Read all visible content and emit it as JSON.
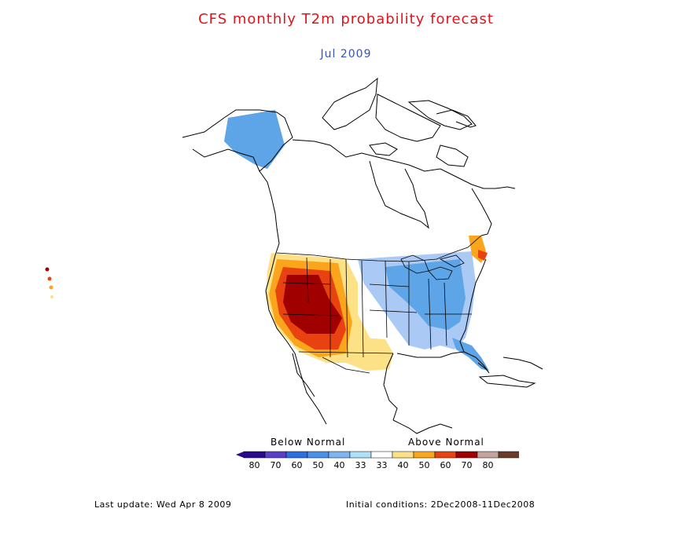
{
  "header": {
    "title": "CFS monthly T2m probability forecast",
    "subtitle": "Jul 2009"
  },
  "colors": {
    "title": "#e0141b",
    "subtitle": "#2f55c9",
    "outline": "#000000",
    "below_light": "#aac9f5",
    "below_mid": "#5ea5e8",
    "above_light": "#fde186",
    "above_mid": "#fba51c",
    "above_strong": "#e7420f",
    "above_dark": "#a10000"
  },
  "map": {
    "projection": "polar stereographic",
    "region": "North America",
    "field": "2m temperature tercile probability"
  },
  "legend": {
    "below_label": "Below Normal",
    "above_label": "Above Normal",
    "classes": [
      {
        "label": "80",
        "color": "#2a0a8c"
      },
      {
        "label": "70",
        "color": "#5a3fc8"
      },
      {
        "label": "60",
        "color": "#2d6ee0"
      },
      {
        "label": "50",
        "color": "#4a90e8"
      },
      {
        "label": "40",
        "color": "#7fb3f2"
      },
      {
        "label": "33",
        "color": "#aee0f8"
      },
      {
        "label": "33",
        "color": "#ffffff"
      },
      {
        "label": "40",
        "color": "#fde186"
      },
      {
        "label": "50",
        "color": "#fba51c"
      },
      {
        "label": "60",
        "color": "#e7420f"
      },
      {
        "label": "70",
        "color": "#a10000"
      },
      {
        "label": "80",
        "color": "#c3a49c"
      },
      {
        "label": "",
        "color": "#6b3a2a"
      }
    ]
  },
  "footer": {
    "last_update": "Last update: Wed Apr 8 2009",
    "initial_conditions": "Initial conditions: 2Dec2008-11Dec2008"
  }
}
